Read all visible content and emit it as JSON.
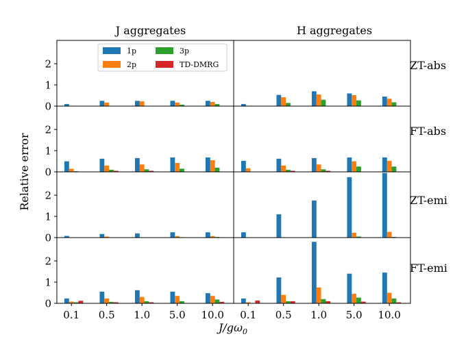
{
  "chart_data": {
    "type": "bar",
    "ylabel": "Relative error",
    "xlabel": "J/gω₀",
    "xlabel_parts": {
      "main": "J/gω",
      "sub": "0"
    },
    "categories": [
      "0.1",
      "0.5",
      "1.0",
      "5.0",
      "10.0"
    ],
    "ylim": [
      0,
      3.1
    ],
    "yticks": [
      "0",
      "1",
      "2"
    ],
    "legend": {
      "location": "upper-right of top-left panel",
      "entries": [
        {
          "label": "1p",
          "color": "#1f77b4"
        },
        {
          "label": "2p",
          "color": "#ff7f0e"
        },
        {
          "label": "3p",
          "color": "#2ca02c"
        },
        {
          "label": "TD-DMRG",
          "color": "#d62728"
        }
      ]
    },
    "columns": [
      "J aggregates",
      "H aggregates"
    ],
    "rows": [
      "ZT-abs",
      "FT-abs",
      "ZT-emi",
      "FT-emi"
    ],
    "panels": [
      {
        "row": "ZT-abs",
        "column": "J aggregates",
        "series": [
          {
            "name": "1p",
            "values": [
              0.1,
              0.25,
              0.25,
              0.25,
              0.25
            ]
          },
          {
            "name": "2p",
            "values": [
              0,
              0.17,
              0.23,
              0.17,
              0.2
            ]
          },
          {
            "name": "3p",
            "values": [
              0,
              0,
              0,
              0.07,
              0.1
            ]
          },
          {
            "name": "TD-DMRG",
            "values": [
              0,
              0,
              0,
              0,
              0
            ]
          }
        ]
      },
      {
        "row": "ZT-abs",
        "column": "H aggregates",
        "series": [
          {
            "name": "1p",
            "values": [
              0.1,
              0.53,
              0.7,
              0.6,
              0.45
            ]
          },
          {
            "name": "2p",
            "values": [
              0.02,
              0.42,
              0.55,
              0.52,
              0.35
            ]
          },
          {
            "name": "3p",
            "values": [
              0,
              0.15,
              0.3,
              0.27,
              0.18
            ]
          },
          {
            "name": "TD-DMRG",
            "values": [
              0,
              0,
              0,
              0,
              0
            ]
          }
        ]
      },
      {
        "row": "FT-abs",
        "column": "J aggregates",
        "series": [
          {
            "name": "1p",
            "values": [
              0.5,
              0.62,
              0.65,
              0.68,
              0.68
            ]
          },
          {
            "name": "2p",
            "values": [
              0.15,
              0.3,
              0.35,
              0.42,
              0.55
            ]
          },
          {
            "name": "3p",
            "values": [
              0.03,
              0.1,
              0.12,
              0.15,
              0.2
            ]
          },
          {
            "name": "TD-DMRG",
            "values": [
              0,
              0.05,
              0.05,
              0,
              0
            ]
          }
        ]
      },
      {
        "row": "FT-abs",
        "column": "H aggregates",
        "series": [
          {
            "name": "1p",
            "values": [
              0.52,
              0.62,
              0.65,
              0.68,
              0.68
            ]
          },
          {
            "name": "2p",
            "values": [
              0.17,
              0.3,
              0.35,
              0.5,
              0.52
            ]
          },
          {
            "name": "3p",
            "values": [
              0,
              0.1,
              0.12,
              0.25,
              0.25
            ]
          },
          {
            "name": "TD-DMRG",
            "values": [
              0,
              0.05,
              0.05,
              0,
              0
            ]
          }
        ]
      },
      {
        "row": "ZT-emi",
        "column": "J aggregates",
        "series": [
          {
            "name": "1p",
            "values": [
              0.08,
              0.17,
              0.2,
              0.25,
              0.25
            ]
          },
          {
            "name": "2p",
            "values": [
              0,
              0.05,
              0,
              0.07,
              0.07
            ]
          },
          {
            "name": "3p",
            "values": [
              0,
              0,
              0,
              0.02,
              0.03
            ]
          },
          {
            "name": "TD-DMRG",
            "values": [
              0,
              0,
              0,
              0,
              0
            ]
          }
        ]
      },
      {
        "row": "ZT-emi",
        "column": "H aggregates",
        "series": [
          {
            "name": "1p",
            "values": [
              0.25,
              1.1,
              1.75,
              2.85,
              3.05
            ]
          },
          {
            "name": "2p",
            "values": [
              0,
              0,
              0,
              0.23,
              0.27
            ]
          },
          {
            "name": "3p",
            "values": [
              0,
              0,
              0,
              0.05,
              0.03
            ]
          },
          {
            "name": "TD-DMRG",
            "values": [
              0,
              0,
              0,
              0,
              0
            ]
          }
        ]
      },
      {
        "row": "FT-emi",
        "column": "J aggregates",
        "series": [
          {
            "name": "1p",
            "values": [
              0.23,
              0.55,
              0.62,
              0.55,
              0.48
            ]
          },
          {
            "name": "2p",
            "values": [
              0.08,
              0.23,
              0.3,
              0.35,
              0.35
            ]
          },
          {
            "name": "3p",
            "values": [
              0.05,
              0.07,
              0.1,
              0.1,
              0.18
            ]
          },
          {
            "name": "TD-DMRG",
            "values": [
              0.12,
              0.05,
              0.05,
              0,
              0.07
            ]
          }
        ]
      },
      {
        "row": "FT-emi",
        "column": "H aggregates",
        "series": [
          {
            "name": "1p",
            "values": [
              0.23,
              1.22,
              2.9,
              1.4,
              1.45
            ]
          },
          {
            "name": "2p",
            "values": [
              0.05,
              0.4,
              0.75,
              0.45,
              0.5
            ]
          },
          {
            "name": "3p",
            "values": [
              0,
              0.1,
              0.2,
              0.27,
              0.23
            ]
          },
          {
            "name": "TD-DMRG",
            "values": [
              0.13,
              0.1,
              0.1,
              0.08,
              0.05
            ]
          }
        ]
      }
    ]
  }
}
